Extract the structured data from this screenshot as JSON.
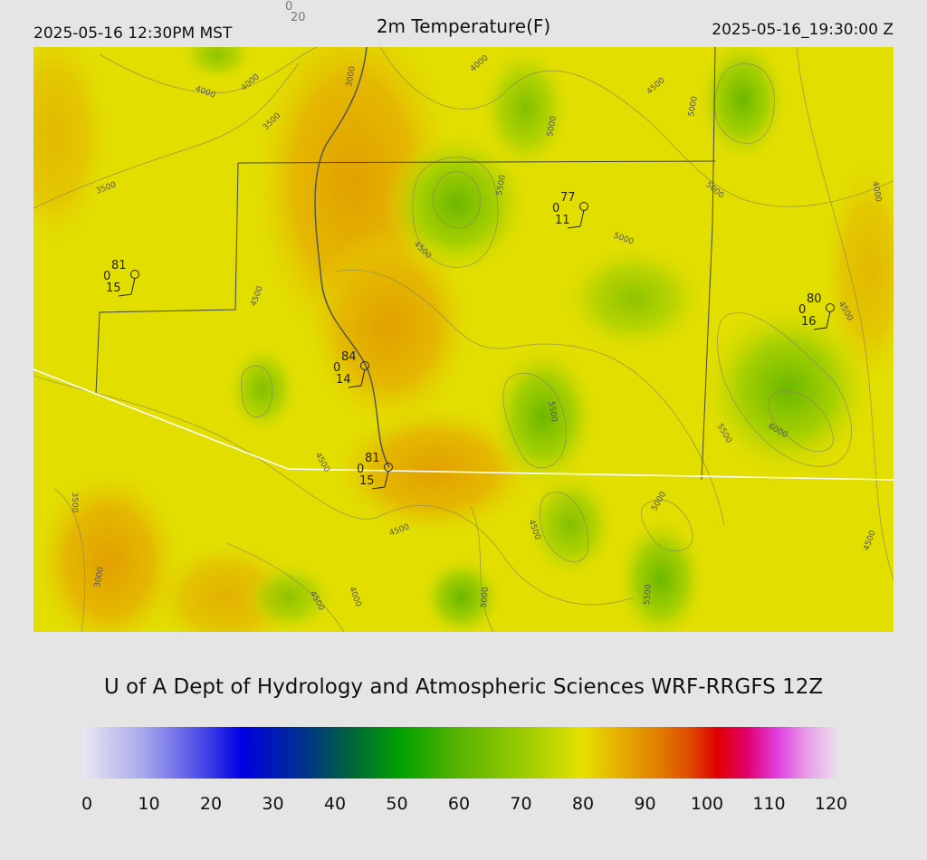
{
  "header": {
    "left": "2025-05-16 12:30PM MST",
    "title": "2m Temperature(F)",
    "right": "2025-05-16_19:30:00 Z",
    "reference": [
      "0",
      "20"
    ]
  },
  "contour_labels": [
    "4000",
    "4000",
    "4000",
    "3000",
    "3500",
    "3500",
    "5000",
    "4500",
    "5000",
    "5500",
    "4500",
    "5000",
    "5000",
    "4000",
    "4500",
    "4500",
    "5500",
    "5500",
    "6000",
    "4500",
    "3500",
    "5000",
    "4500",
    "4500",
    "4500",
    "3000",
    "4000",
    "4500",
    "5000",
    "5500"
  ],
  "stations": [
    {
      "temperature": "81",
      "dewpoint": "0",
      "wind": "15"
    },
    {
      "temperature": "77",
      "dewpoint": "0",
      "wind": "11"
    },
    {
      "temperature": "80",
      "dewpoint": "0",
      "wind": "16"
    },
    {
      "temperature": "84",
      "dewpoint": "0",
      "wind": "14"
    },
    {
      "temperature": "81",
      "dewpoint": "0",
      "wind": "15"
    }
  ],
  "footer": "U of A Dept of Hydrology and Atmospheric Sciences WRF-RRGFS 12Z",
  "colorbar": {
    "ticks": [
      0,
      10,
      20,
      30,
      40,
      50,
      60,
      70,
      80,
      90,
      100,
      110,
      120
    ]
  }
}
